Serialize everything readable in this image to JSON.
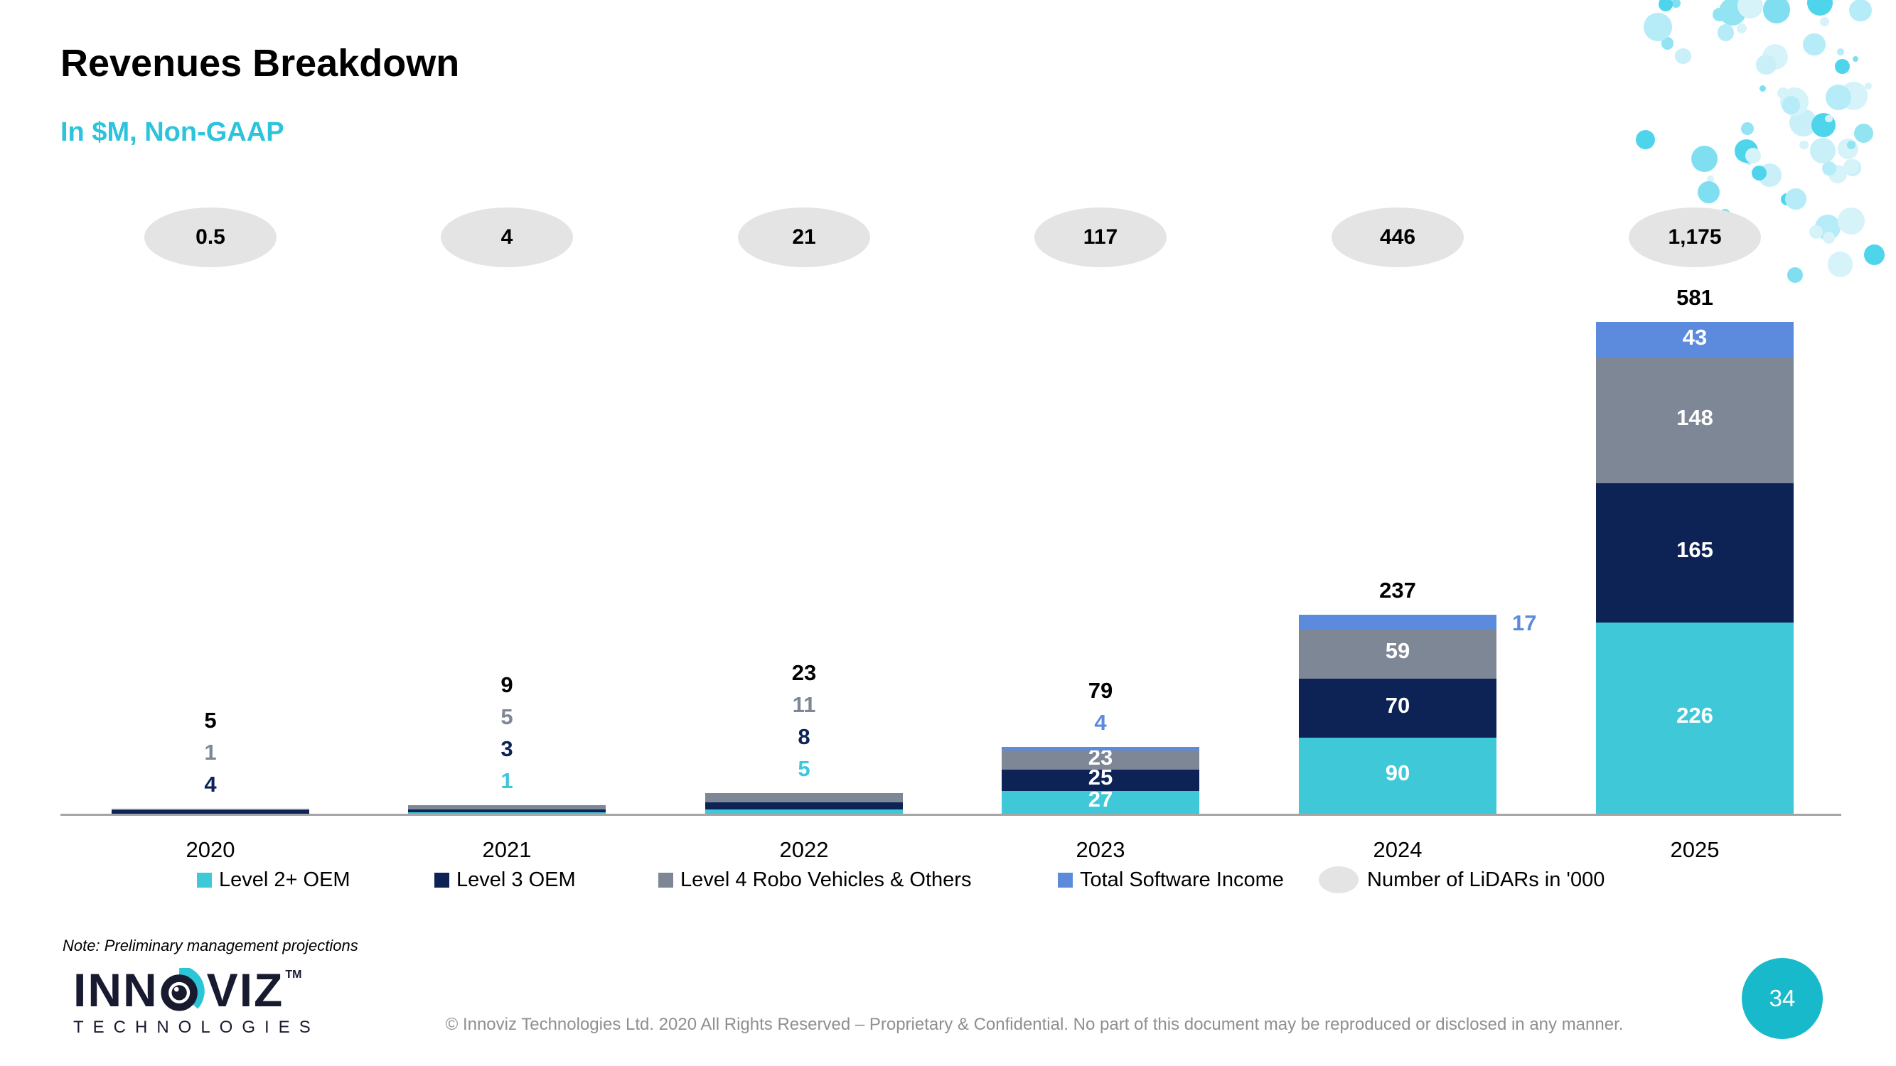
{
  "slide": {
    "title": "Revenues Breakdown",
    "subtitle": "In $M, Non-GAAP",
    "note": "Note: Preliminary management projections",
    "footer": "© Innoviz Technologies Ltd. 2020 All Rights Reserved – Proprietary & Confidential. No part of this document may be reproduced or disclosed in any manner.",
    "page_number": "34",
    "logo": {
      "word_left": "INN",
      "word_right": "VIZ",
      "tm": "TM",
      "sub": "TECHNOLOGIES"
    }
  },
  "colors": {
    "cyan": "#3EC8D8",
    "navy": "#0D2356",
    "gray": "#7E8795",
    "blue": "#5C8BDE",
    "black": "#000000",
    "oval_bg": "#E4E4E4",
    "axis": "#A6A6A6",
    "subtitle_accent": "#2BC4DB",
    "page_circle": "#17B9CA",
    "footer_gray": "#8F8F8F"
  },
  "chart_data": {
    "type": "bar",
    "stacked": true,
    "title": "Revenues Breakdown",
    "subtitle": "In $M, Non-GAAP",
    "categories": [
      "2020",
      "2021",
      "2022",
      "2023",
      "2024",
      "2025"
    ],
    "series": [
      {
        "name": "Level 2+ OEM",
        "color_key": "cyan",
        "values": [
          0,
          1,
          5,
          27,
          90,
          226
        ]
      },
      {
        "name": "Level 3 OEM",
        "color_key": "navy",
        "values": [
          4,
          3,
          8,
          25,
          70,
          165
        ]
      },
      {
        "name": "Level 4 Robo Vehicles & Others",
        "color_key": "gray",
        "values": [
          1,
          5,
          11,
          23,
          59,
          148
        ]
      },
      {
        "name": "Total Software Income",
        "color_key": "blue",
        "values": [
          0,
          0,
          0,
          4,
          17,
          43
        ]
      }
    ],
    "totals": [
      "5",
      "9",
      "23",
      "79",
      "237",
      "581"
    ],
    "lidar_counts": [
      "0.5",
      "4",
      "21",
      "117",
      "446",
      "1,175"
    ],
    "lidar_legend": "Number of LiDARs in '000",
    "bar_labels": [
      {
        "above": [
          [
            "1",
            "gray"
          ],
          [
            "4",
            "navy"
          ]
        ],
        "inside": {},
        "right": null
      },
      {
        "above": [
          [
            "5",
            "gray"
          ],
          [
            "3",
            "navy"
          ],
          [
            "1",
            "cyan"
          ]
        ],
        "inside": {},
        "right": null
      },
      {
        "above": [
          [
            "11",
            "gray"
          ],
          [
            "8",
            "navy"
          ],
          [
            "5",
            "cyan"
          ]
        ],
        "inside": {},
        "right": null
      },
      {
        "above": [
          [
            "4",
            "blue"
          ]
        ],
        "inside": {
          "gray": "23",
          "navy": "25",
          "cyan": "27"
        },
        "right": null
      },
      {
        "above": [],
        "inside": {
          "gray": "59",
          "navy": "70",
          "cyan": "90"
        },
        "right": [
          "17",
          "blue"
        ]
      },
      {
        "above": [],
        "inside": {
          "blue": "43",
          "gray": "148",
          "navy": "165",
          "cyan": "226"
        },
        "right": null
      }
    ],
    "ylim": [
      0,
      600
    ],
    "grid": false,
    "legend_position": "bottom"
  }
}
